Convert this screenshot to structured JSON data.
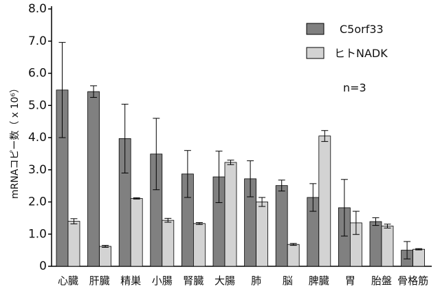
{
  "chart_data": {
    "type": "bar",
    "categories": [
      "心臓",
      "肝臓",
      "精巣",
      "小腸",
      "腎臓",
      "大腸",
      "肺",
      "脳",
      "脾臓",
      "胃",
      "胎盤",
      "骨格筋"
    ],
    "series": [
      {
        "name": "C5orf33",
        "color": "#808080",
        "values": [
          5.48,
          5.43,
          3.97,
          3.49,
          2.87,
          2.78,
          2.72,
          2.51,
          2.14,
          1.82,
          1.39,
          0.5
        ],
        "errors": [
          1.48,
          0.18,
          1.07,
          1.11,
          0.73,
          0.8,
          0.56,
          0.17,
          0.43,
          0.88,
          0.12,
          0.27
        ]
      },
      {
        "name": "ヒトNADK",
        "color": "#d3d3d3",
        "values": [
          1.4,
          0.62,
          2.11,
          1.43,
          1.33,
          3.23,
          2.0,
          0.68,
          4.05,
          1.35,
          1.25,
          0.53
        ],
        "errors": [
          0.08,
          0.03,
          0.02,
          0.06,
          0.03,
          0.07,
          0.14,
          0.03,
          0.17,
          0.36,
          0.06,
          0.02
        ]
      }
    ],
    "ylabel": "mRNAコピー数（ x 10⁶）",
    "ylim": [
      0,
      8
    ],
    "yticks": [
      "0",
      "1.0",
      "2.0",
      "3.0",
      "4.0",
      "5.0",
      "6.0",
      "7.0",
      "8.0"
    ],
    "annotation": "n=3",
    "legend_position": "top-right",
    "grid": false
  }
}
